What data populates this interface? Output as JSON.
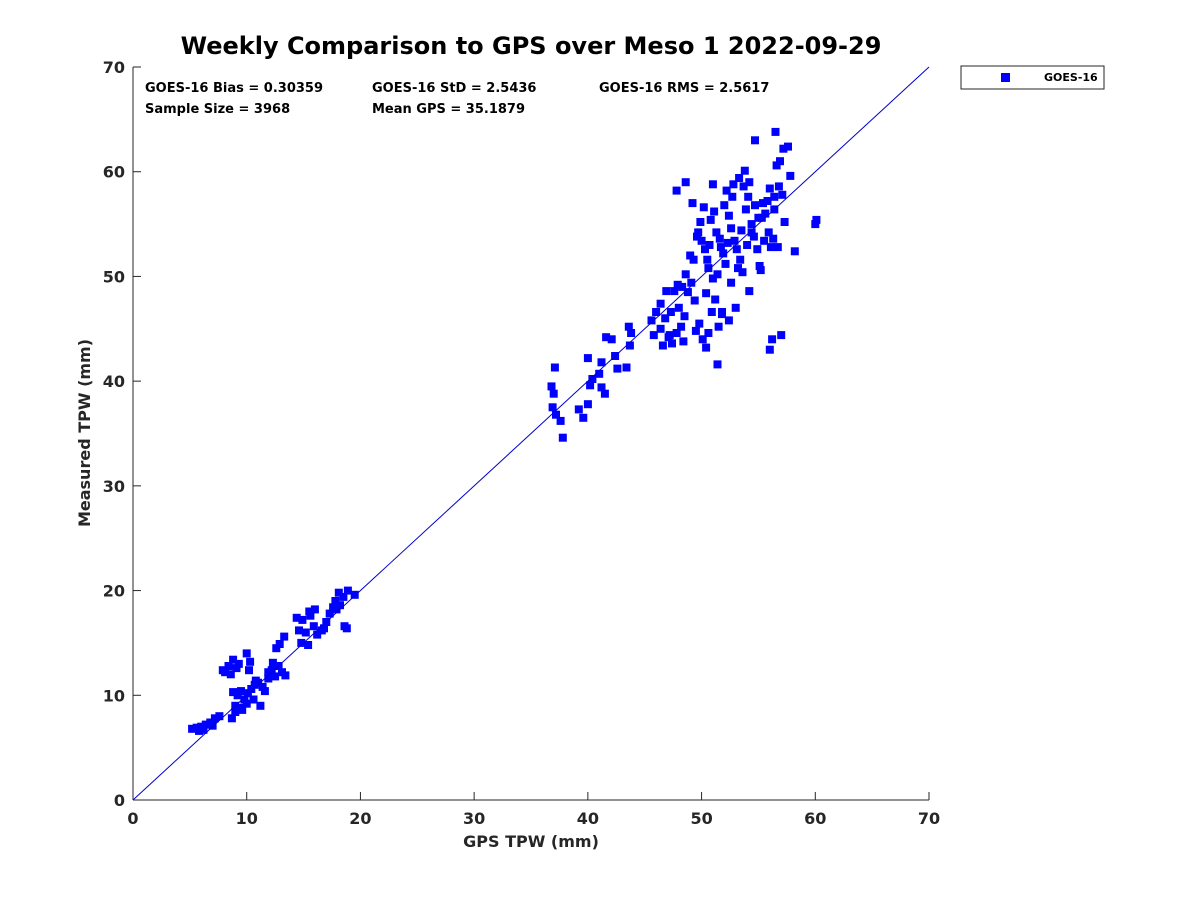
{
  "chart_data": {
    "type": "scatter",
    "title": "Weekly Comparison to GPS over Meso 1 2022-09-29",
    "xlabel": "GPS TPW (mm)",
    "ylabel": "Measured TPW (mm)",
    "xlim": [
      0,
      70
    ],
    "ylim": [
      0,
      70
    ],
    "xticks": [
      "0",
      "10",
      "20",
      "30",
      "40",
      "50",
      "60",
      "70"
    ],
    "yticks": [
      "0",
      "10",
      "20",
      "30",
      "40",
      "50",
      "60",
      "70"
    ],
    "grid": false,
    "legend_position": "outside-top-right",
    "reference_line": {
      "name": "1:1 line",
      "from": [
        0,
        0
      ],
      "to": [
        70,
        70
      ],
      "color": "#0000cc"
    },
    "stats": {
      "bias": "GOES-16 Bias = 0.30359",
      "std": "GOES-16 StD = 2.5436",
      "rms": "GOES-16 RMS = 2.5617",
      "sample_size": "Sample Size = 3968",
      "mean_gps": "Mean GPS = 35.1879"
    },
    "series": [
      {
        "name": "GOES-16",
        "color": "#0000ff",
        "marker": "square",
        "points": [
          [
            5.2,
            6.8
          ],
          [
            5.6,
            6.9
          ],
          [
            6.0,
            7.0
          ],
          [
            5.8,
            6.6
          ],
          [
            6.4,
            7.2
          ],
          [
            6.8,
            7.4
          ],
          [
            7.2,
            7.8
          ],
          [
            7.6,
            8.0
          ],
          [
            7.0,
            7.1
          ],
          [
            6.2,
            6.7
          ],
          [
            8.1,
            12.2
          ],
          [
            8.4,
            12.8
          ],
          [
            8.8,
            13.4
          ],
          [
            9.1,
            12.6
          ],
          [
            8.6,
            12.0
          ],
          [
            9.3,
            13.0
          ],
          [
            10.0,
            14.0
          ],
          [
            10.3,
            13.2
          ],
          [
            10.2,
            12.4
          ],
          [
            7.9,
            12.4
          ],
          [
            8.8,
            10.3
          ],
          [
            9.2,
            10.0
          ],
          [
            9.5,
            10.4
          ],
          [
            9.8,
            9.6
          ],
          [
            10.1,
            10.2
          ],
          [
            10.4,
            10.6
          ],
          [
            10.7,
            11.0
          ],
          [
            11.0,
            11.2
          ],
          [
            9.0,
            9.0
          ],
          [
            9.4,
            8.8
          ],
          [
            8.7,
            7.8
          ],
          [
            9.0,
            8.4
          ],
          [
            9.6,
            8.6
          ],
          [
            10.0,
            9.2
          ],
          [
            10.6,
            9.6
          ],
          [
            11.2,
            9.0
          ],
          [
            11.6,
            10.4
          ],
          [
            11.9,
            11.6
          ],
          [
            12.2,
            12.4
          ],
          [
            12.5,
            11.8
          ],
          [
            12.8,
            12.8
          ],
          [
            13.1,
            12.2
          ],
          [
            13.4,
            11.9
          ],
          [
            12.3,
            13.1
          ],
          [
            11.9,
            12.2
          ],
          [
            12.6,
            14.5
          ],
          [
            13.3,
            15.6
          ],
          [
            12.9,
            14.9
          ],
          [
            11.4,
            10.8
          ],
          [
            10.8,
            11.4
          ],
          [
            14.6,
            16.2
          ],
          [
            14.9,
            17.2
          ],
          [
            15.2,
            16.0
          ],
          [
            15.6,
            17.6
          ],
          [
            15.9,
            16.6
          ],
          [
            16.2,
            15.8
          ],
          [
            14.8,
            15.0
          ],
          [
            15.4,
            14.8
          ],
          [
            14.4,
            17.4
          ],
          [
            16.0,
            18.2
          ],
          [
            16.6,
            16.2
          ],
          [
            17.0,
            17.0
          ],
          [
            17.3,
            17.8
          ],
          [
            17.6,
            18.4
          ],
          [
            17.9,
            18.2
          ],
          [
            18.2,
            18.6
          ],
          [
            18.5,
            19.4
          ],
          [
            18.9,
            20.0
          ],
          [
            18.1,
            19.8
          ],
          [
            19.5,
            19.6
          ],
          [
            18.6,
            16.6
          ],
          [
            18.8,
            16.4
          ],
          [
            16.8,
            16.4
          ],
          [
            15.5,
            18.0
          ],
          [
            17.8,
            19.0
          ],
          [
            36.8,
            39.5
          ],
          [
            37.1,
            41.3
          ],
          [
            37.0,
            38.8
          ],
          [
            36.9,
            37.5
          ],
          [
            37.2,
            36.8
          ],
          [
            37.8,
            34.6
          ],
          [
            37.6,
            36.2
          ],
          [
            39.2,
            37.3
          ],
          [
            39.6,
            36.5
          ],
          [
            40.0,
            37.8
          ],
          [
            40.2,
            39.6
          ],
          [
            40.4,
            40.2
          ],
          [
            41.0,
            40.7
          ],
          [
            41.2,
            39.4
          ],
          [
            41.5,
            38.8
          ],
          [
            41.6,
            44.2
          ],
          [
            42.1,
            44.0
          ],
          [
            42.4,
            42.4
          ],
          [
            43.4,
            41.3
          ],
          [
            43.7,
            43.4
          ],
          [
            43.6,
            45.2
          ],
          [
            40.0,
            42.2
          ],
          [
            41.2,
            41.8
          ],
          [
            42.6,
            41.2
          ],
          [
            43.8,
            44.6
          ],
          [
            45.6,
            45.8
          ],
          [
            46.0,
            46.6
          ],
          [
            46.4,
            47.4
          ],
          [
            46.8,
            46.0
          ],
          [
            47.1,
            44.2
          ],
          [
            47.4,
            43.6
          ],
          [
            47.8,
            44.6
          ],
          [
            48.2,
            45.2
          ],
          [
            48.5,
            46.2
          ],
          [
            48.8,
            48.5
          ],
          [
            49.1,
            49.4
          ],
          [
            49.4,
            47.7
          ],
          [
            49.8,
            45.5
          ],
          [
            50.1,
            44.0
          ],
          [
            50.4,
            43.2
          ],
          [
            50.6,
            44.6
          ],
          [
            50.9,
            46.6
          ],
          [
            51.2,
            47.8
          ],
          [
            51.5,
            45.2
          ],
          [
            51.8,
            46.4
          ],
          [
            47.6,
            48.6
          ],
          [
            47.9,
            49.2
          ],
          [
            48.3,
            49.0
          ],
          [
            48.6,
            50.2
          ],
          [
            49.0,
            52.0
          ],
          [
            49.3,
            51.6
          ],
          [
            46.4,
            45.0
          ],
          [
            46.9,
            48.6
          ],
          [
            45.8,
            44.4
          ],
          [
            49.6,
            53.8
          ],
          [
            49.7,
            54.2
          ],
          [
            50.0,
            53.4
          ],
          [
            50.3,
            52.6
          ],
          [
            50.5,
            51.6
          ],
          [
            50.8,
            55.4
          ],
          [
            51.1,
            56.2
          ],
          [
            51.3,
            54.2
          ],
          [
            51.6,
            53.6
          ],
          [
            51.9,
            52.2
          ],
          [
            52.1,
            51.2
          ],
          [
            52.4,
            55.8
          ],
          [
            52.6,
            54.6
          ],
          [
            52.9,
            53.4
          ],
          [
            53.1,
            52.6
          ],
          [
            53.4,
            51.6
          ],
          [
            53.6,
            50.4
          ],
          [
            53.9,
            56.4
          ],
          [
            54.1,
            57.6
          ],
          [
            54.4,
            55.0
          ],
          [
            54.6,
            53.8
          ],
          [
            54.9,
            52.6
          ],
          [
            55.1,
            51.0
          ],
          [
            55.4,
            57.0
          ],
          [
            55.6,
            56.0
          ],
          [
            55.9,
            54.2
          ],
          [
            56.1,
            52.8
          ],
          [
            52.2,
            58.2
          ],
          [
            52.8,
            58.8
          ],
          [
            53.3,
            59.4
          ],
          [
            53.8,
            60.1
          ],
          [
            54.2,
            59.0
          ],
          [
            52.0,
            56.8
          ],
          [
            51.4,
            50.2
          ],
          [
            51.0,
            49.8
          ],
          [
            52.6,
            49.4
          ],
          [
            53.2,
            50.8
          ],
          [
            55.0,
            55.6
          ],
          [
            54.7,
            56.8
          ],
          [
            50.2,
            56.6
          ],
          [
            49.9,
            55.2
          ],
          [
            51.7,
            52.8
          ],
          [
            52.3,
            53.2
          ],
          [
            53.5,
            54.4
          ],
          [
            54.0,
            53.0
          ],
          [
            50.6,
            50.8
          ],
          [
            56.0,
            58.4
          ],
          [
            56.4,
            57.6
          ],
          [
            56.8,
            58.6
          ],
          [
            57.1,
            57.8
          ],
          [
            56.6,
            60.6
          ],
          [
            56.9,
            61.0
          ],
          [
            57.2,
            62.2
          ],
          [
            57.6,
            62.4
          ],
          [
            56.5,
            63.8
          ],
          [
            54.7,
            63.0
          ],
          [
            57.8,
            59.6
          ],
          [
            57.3,
            55.2
          ],
          [
            56.4,
            56.4
          ],
          [
            56.3,
            53.6
          ],
          [
            56.7,
            52.8
          ],
          [
            58.2,
            52.4
          ],
          [
            60.0,
            55.0
          ],
          [
            60.1,
            55.4
          ],
          [
            56.2,
            44.0
          ],
          [
            56.0,
            43.0
          ],
          [
            57.0,
            44.4
          ],
          [
            54.2,
            48.6
          ],
          [
            51.4,
            41.6
          ],
          [
            55.2,
            50.6
          ],
          [
            55.5,
            53.4
          ],
          [
            47.8,
            58.2
          ],
          [
            48.6,
            59.0
          ],
          [
            49.2,
            57.0
          ],
          [
            51.0,
            58.8
          ],
          [
            50.7,
            53.0
          ],
          [
            53.0,
            47.0
          ],
          [
            52.4,
            45.8
          ],
          [
            51.8,
            46.6
          ],
          [
            50.4,
            48.4
          ],
          [
            49.5,
            44.8
          ],
          [
            48.4,
            43.8
          ],
          [
            47.2,
            44.4
          ],
          [
            46.6,
            43.4
          ],
          [
            47.3,
            46.6
          ],
          [
            48.0,
            47.0
          ],
          [
            52.7,
            57.6
          ],
          [
            53.7,
            58.6
          ],
          [
            55.8,
            57.2
          ],
          [
            55.3,
            55.6
          ],
          [
            54.4,
            54.2
          ]
        ]
      }
    ]
  }
}
